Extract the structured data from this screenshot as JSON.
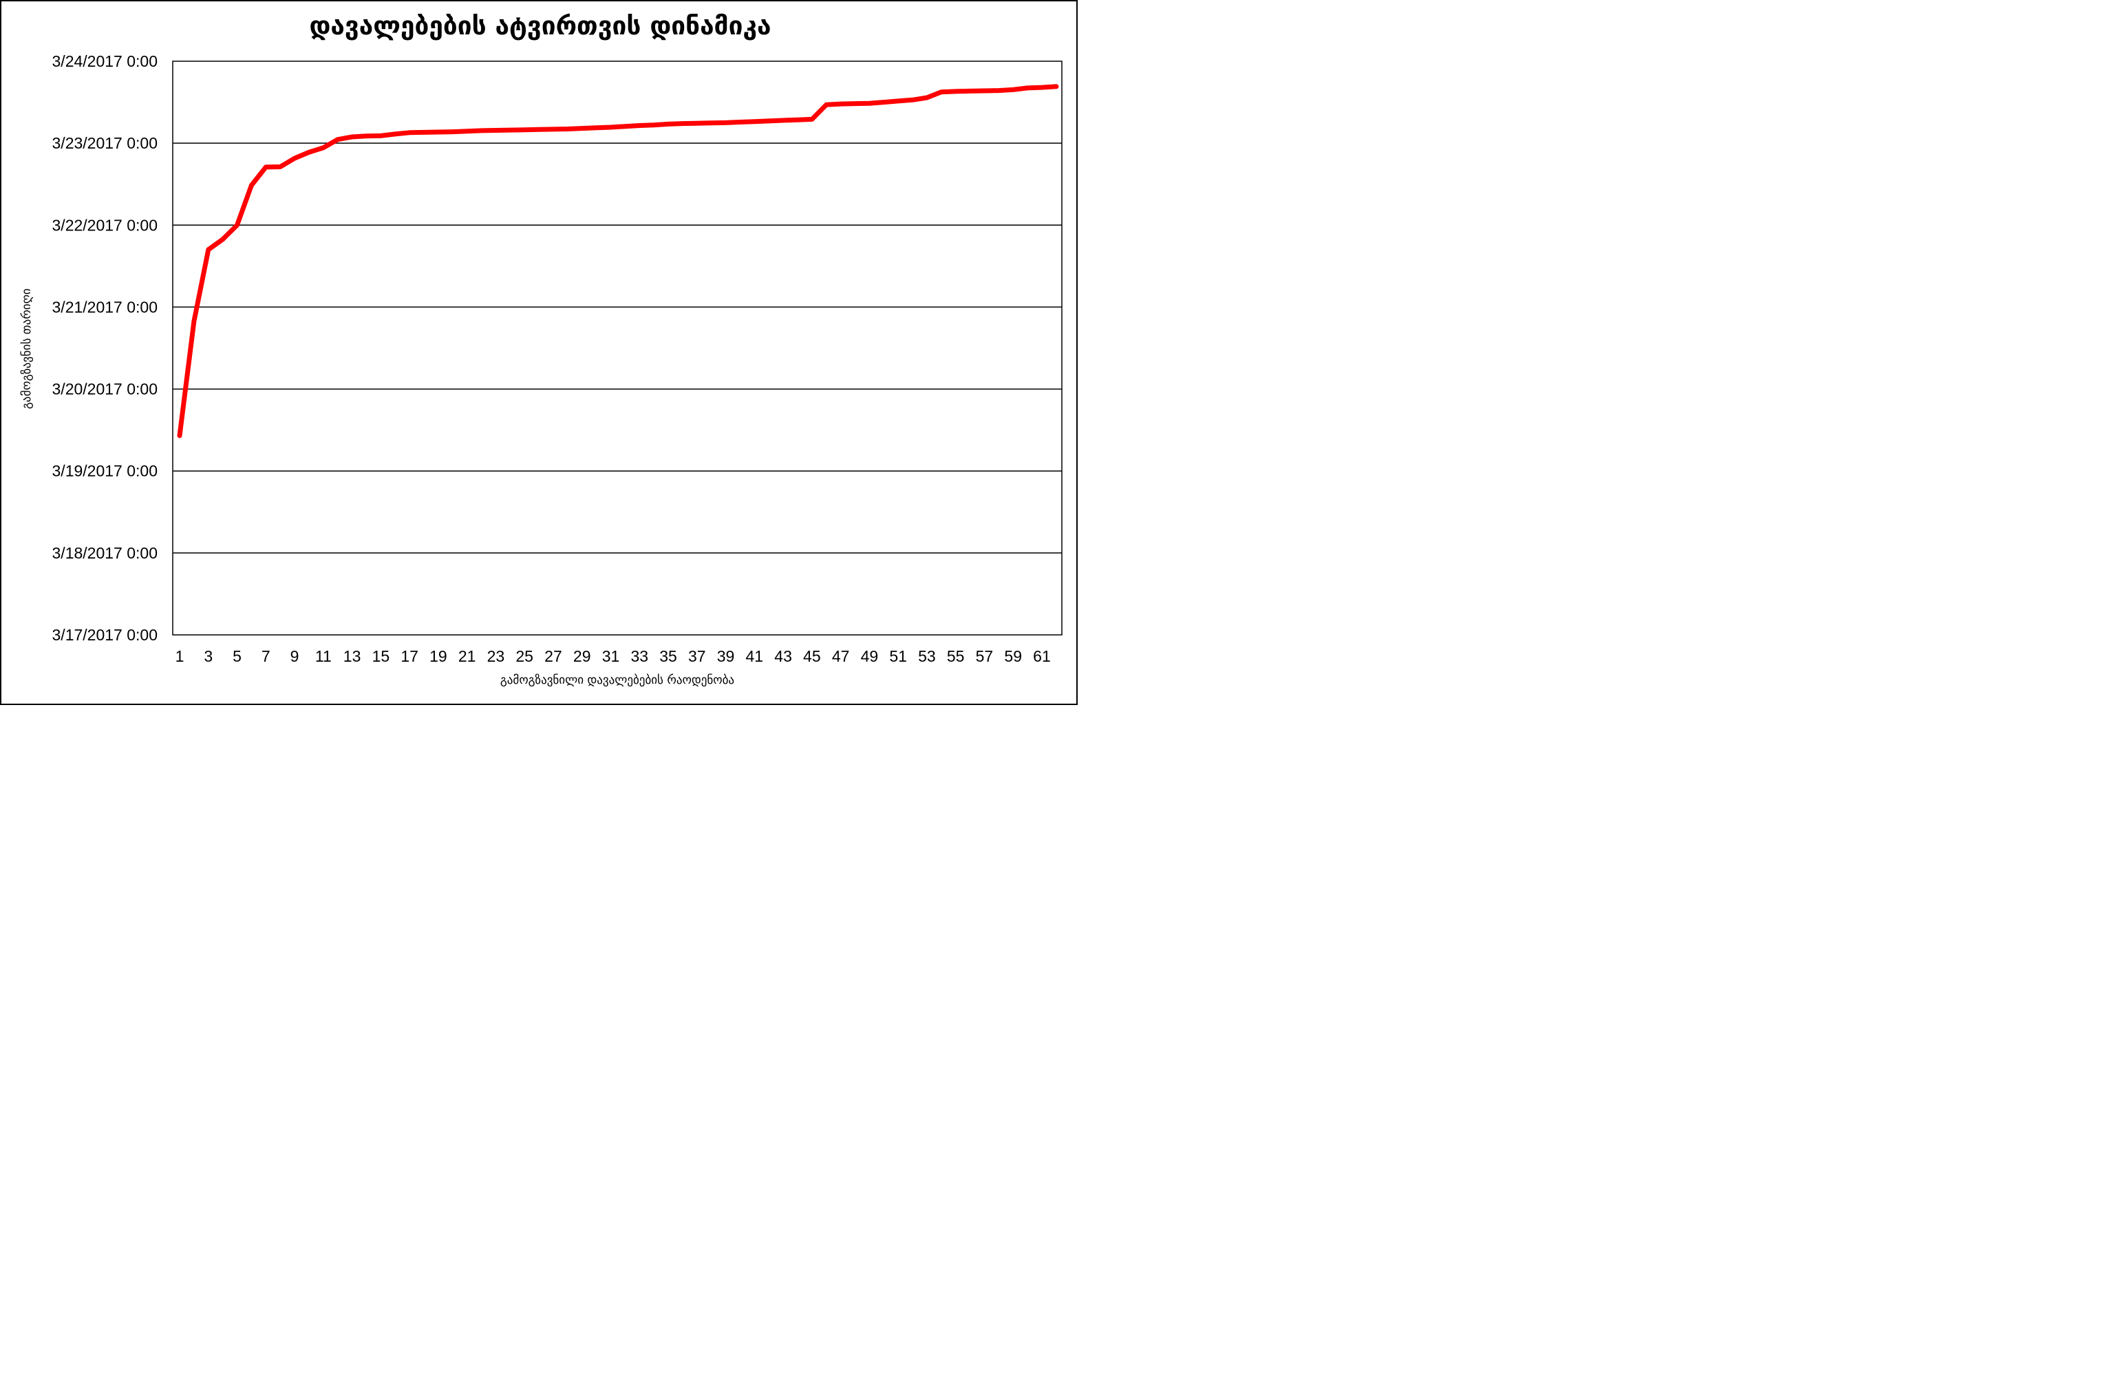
{
  "chart_data": {
    "type": "line",
    "title": "დავალებების ატვირთვის დინამიკა",
    "xlabel": "გამოგზავნილი დავალებების რაოდენობა",
    "ylabel": "გამოგზავნის თარიღი",
    "x": [
      1,
      2,
      3,
      4,
      5,
      6,
      7,
      8,
      9,
      10,
      11,
      12,
      13,
      14,
      15,
      16,
      17,
      18,
      19,
      20,
      21,
      22,
      23,
      24,
      25,
      26,
      27,
      28,
      29,
      30,
      31,
      32,
      33,
      34,
      35,
      36,
      37,
      38,
      39,
      40,
      41,
      42,
      43,
      44,
      45,
      46,
      47,
      48,
      49,
      50,
      51,
      52,
      53,
      54,
      55,
      56,
      57,
      58,
      59,
      60,
      61,
      62
    ],
    "x_tick_labels": [
      "1",
      "3",
      "5",
      "7",
      "9",
      "11",
      "13",
      "15",
      "17",
      "19",
      "21",
      "23",
      "25",
      "27",
      "29",
      "31",
      "33",
      "35",
      "37",
      "39",
      "41",
      "43",
      "45",
      "47",
      "49",
      "51",
      "53",
      "55",
      "57",
      "59",
      "61"
    ],
    "y_tick_labels": [
      "3/24/2017 0:00",
      "3/23/2017 0:00",
      "3/22/2017 0:00",
      "3/21/2017 0:00",
      "3/20/2017 0:00",
      "3/19/2017 0:00",
      "3/18/2017 0:00",
      "3/17/2017 0:00"
    ],
    "ylim": [
      "3/17/2017 0:00",
      "3/24/2017 0:00"
    ],
    "series": [
      {
        "values": [
          "3/19/2017 10:20",
          "3/20/2017 19:50",
          "3/21/2017 16:50",
          "3/21/2017 19:50",
          "3/22/2017 0:00",
          "3/22/2017 11:40",
          "3/22/2017 17:00",
          "3/22/2017 17:05",
          "3/22/2017 19:35",
          "3/22/2017 21:20",
          "3/22/2017 22:40",
          "3/23/2017 1:05",
          "3/23/2017 1:50",
          "3/23/2017 2:05",
          "3/23/2017 2:10",
          "3/23/2017 2:40",
          "3/23/2017 3:05",
          "3/23/2017 3:10",
          "3/23/2017 3:15",
          "3/23/2017 3:20",
          "3/23/2017 3:30",
          "3/23/2017 3:40",
          "3/23/2017 3:45",
          "3/23/2017 3:50",
          "3/23/2017 3:55",
          "3/23/2017 4:00",
          "3/23/2017 4:05",
          "3/23/2017 4:10",
          "3/23/2017 4:20",
          "3/23/2017 4:30",
          "3/23/2017 4:40",
          "3/23/2017 4:55",
          "3/23/2017 5:10",
          "3/23/2017 5:20",
          "3/23/2017 5:35",
          "3/23/2017 5:45",
          "3/23/2017 5:50",
          "3/23/2017 5:55",
          "3/23/2017 6:00",
          "3/23/2017 6:10",
          "3/23/2017 6:20",
          "3/23/2017 6:30",
          "3/23/2017 6:40",
          "3/23/2017 6:50",
          "3/23/2017 7:00",
          "3/23/2017 11:15",
          "3/23/2017 11:30",
          "3/23/2017 11:35",
          "3/23/2017 11:40",
          "3/23/2017 12:00",
          "3/23/2017 12:20",
          "3/23/2017 12:40",
          "3/23/2017 13:20",
          "3/23/2017 15:00",
          "3/23/2017 15:10",
          "3/23/2017 15:15",
          "3/23/2017 15:20",
          "3/23/2017 15:25",
          "3/23/2017 15:40",
          "3/23/2017 16:10",
          "3/23/2017 16:20",
          "3/23/2017 16:35"
        ],
        "color": "#ff0000"
      }
    ],
    "grid": true,
    "legend": "none"
  }
}
